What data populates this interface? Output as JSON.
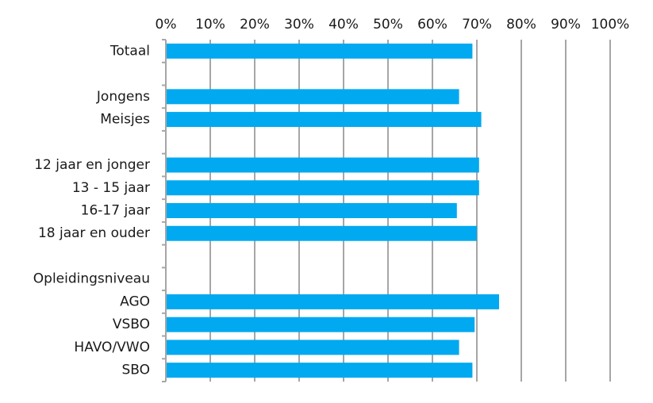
{
  "chart_data": {
    "type": "bar",
    "orientation": "horizontal",
    "title": "",
    "xlabel": "",
    "ylabel": "",
    "xlim": [
      0,
      100
    ],
    "x_ticks": [
      "0%",
      "10%",
      "20%",
      "30%",
      "40%",
      "50%",
      "60%",
      "70%",
      "80%",
      "90%",
      "100%"
    ],
    "x_tick_values": [
      0,
      10,
      20,
      30,
      40,
      50,
      60,
      70,
      80,
      90,
      100
    ],
    "grid": "vertical",
    "bar_color": "#00A9F0",
    "categories": [
      "Totaal",
      "",
      "Jongens",
      "Meisjes",
      "",
      "12 jaar en jonger",
      "13 - 15 jaar",
      "16-17 jaar",
      "18 jaar en ouder",
      "",
      "Opleidingsniveau",
      "AGO",
      "VSBO",
      "HAVO/VWO",
      "SBO"
    ],
    "values": [
      69,
      null,
      66,
      71,
      null,
      70.5,
      70.5,
      65.5,
      70,
      null,
      null,
      75,
      69.5,
      66,
      69
    ]
  }
}
